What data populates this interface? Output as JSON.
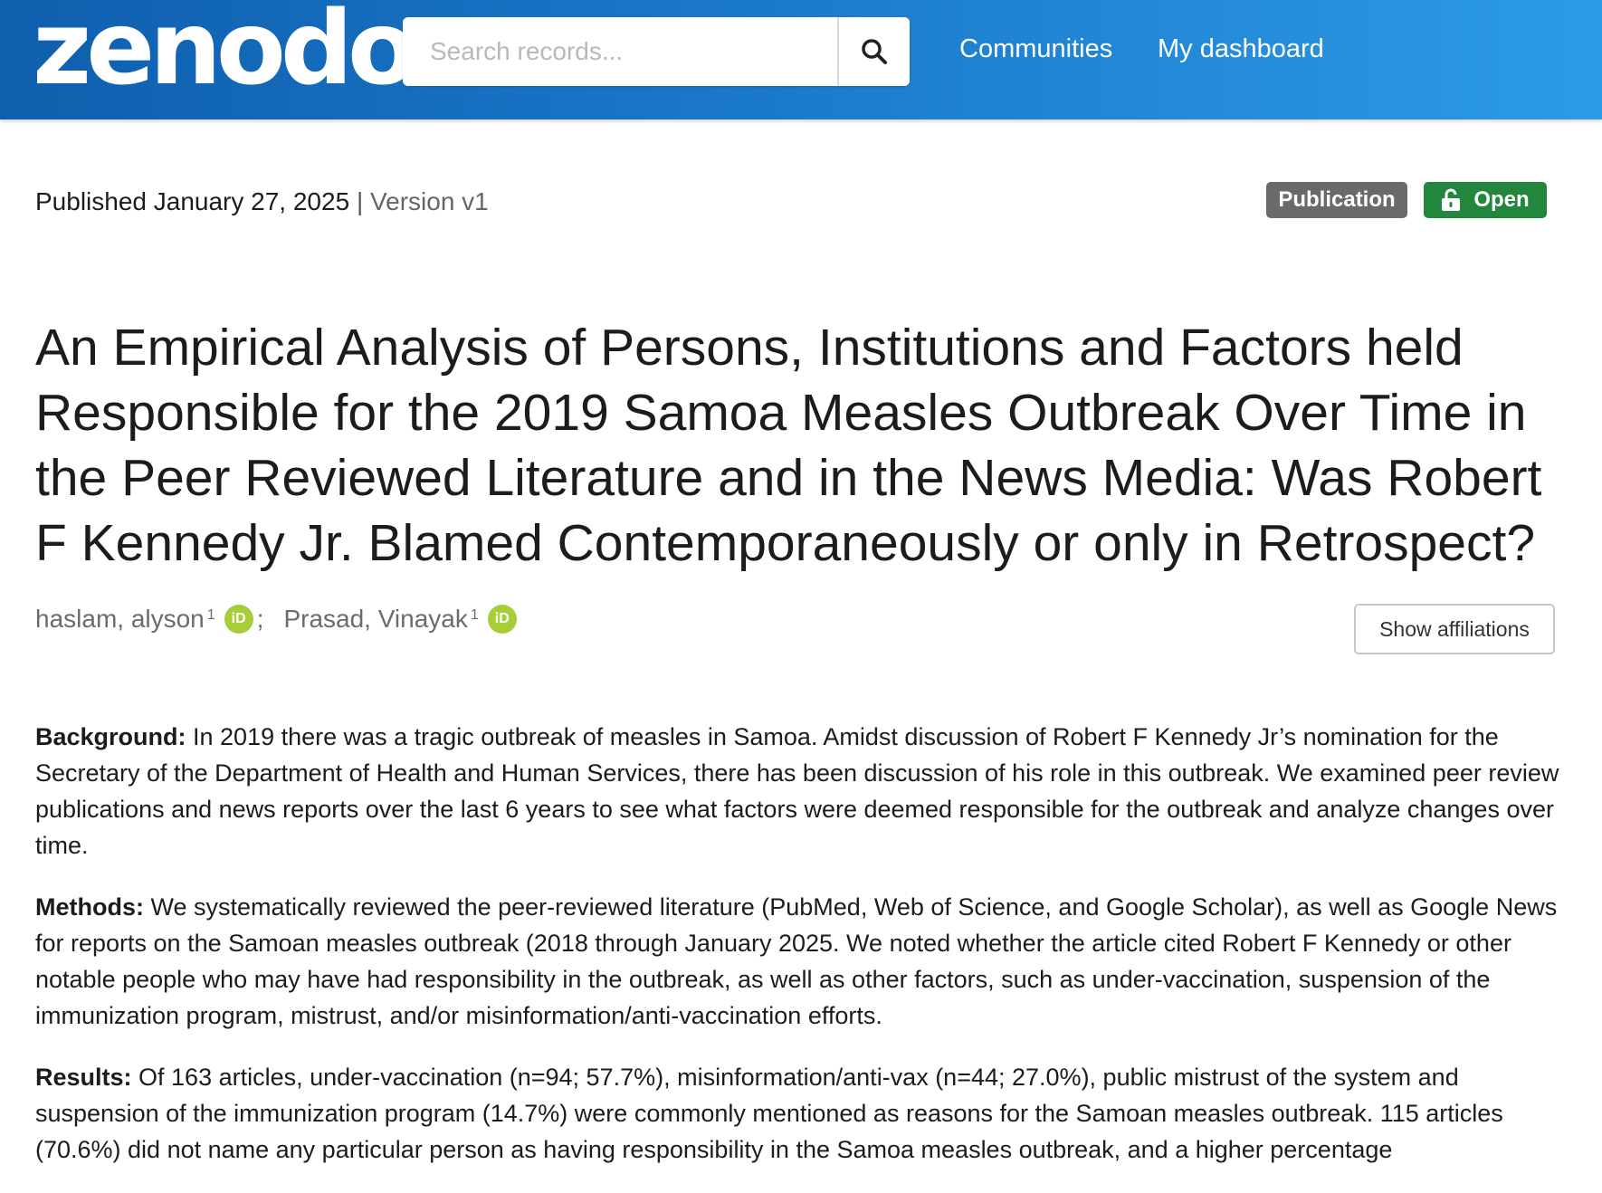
{
  "header": {
    "logo": "zenodo",
    "search": {
      "placeholder": "Search records...",
      "value": ""
    },
    "nav": [
      "Communities",
      "My dashboard"
    ]
  },
  "record": {
    "published": "Published January 27, 2025",
    "separator": "|",
    "version": "Version v1",
    "badges": {
      "type": "Publication",
      "access": "Open"
    },
    "title": "An Empirical Analysis of Persons, Institutions and Factors held Responsible for the 2019 Samoa Measles Outbreak Over Time in the Peer Reviewed Literature and in the News Media: Was Robert F Kennedy Jr. Blamed Contemporaneously or only in Retrospect?",
    "authors": [
      {
        "name": "haslam, alyson",
        "affiliation": "1"
      },
      {
        "name": "Prasad, Vinayak",
        "affiliation": "1"
      }
    ],
    "author_separator": ";",
    "orcid_label": "iD",
    "show_affiliations": "Show affiliations"
  },
  "abstract": {
    "background_label": "Background:",
    "background_text": " In 2019 there was a tragic outbreak of measles in Samoa. Amidst discussion of Robert F Kennedy Jr’s nomination for the Secretary of the Department of Health and Human Services, there has been discussion of his role in this outbreak. We examined peer review publications and news reports over the last 6 years to see what factors were deemed responsible for the outbreak and analyze changes over time.",
    "methods_label": "Methods:",
    "methods_text": " We systematically reviewed the peer-reviewed literature (PubMed, Web of Science, and Google Scholar), as well as Google News for reports on the Samoan measles outbreak (2018 through January 2025. We noted whether the article cited Robert F Kennedy or other notable people who may have had responsibility in the outbreak, as well as other factors, such as under-vaccination, suspension of the immunization program, mistrust, and/or misinformation/anti-vaccination efforts.",
    "results_label": "Results:",
    "results_text": " Of 163 articles, under-vaccination (n=94; 57.7%), misinformation/anti-vax (n=44; 27.0%), public mistrust of the system and suspension of the immunization program (14.7%) were commonly mentioned as reasons for the Samoan measles outbreak. 115 articles (70.6%) did not name any particular person as having responsibility in the Samoa measles outbreak, and a higher percentage"
  },
  "colors": {
    "header_start": "#0f5fae",
    "header_end": "#2c9be6",
    "publication_badge": "#6a6a6a",
    "open_badge": "#22873c",
    "orcid": "#a6ce39"
  },
  "icons": [
    "search-icon",
    "unlock-icon",
    "orcid-icon"
  ]
}
